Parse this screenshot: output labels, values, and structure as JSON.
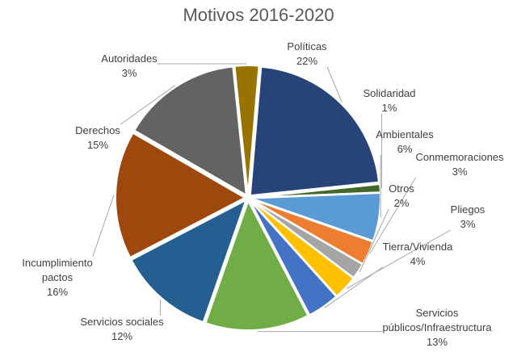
{
  "chart_data": {
    "type": "pie",
    "title": "Motivos 2016-2020",
    "unit": "%",
    "slices": [
      {
        "lines": [
          "Políticas"
        ],
        "value": 22,
        "text": "22%",
        "color": "#264478"
      },
      {
        "lines": [
          "Solidaridad"
        ],
        "value": 1,
        "text": "1%",
        "color": "#43682B"
      },
      {
        "lines": [
          "Ambientales"
        ],
        "value": 6,
        "text": "6%",
        "color": "#5B9BD5"
      },
      {
        "lines": [
          "Conmemoraciones"
        ],
        "value": 3,
        "text": "3%",
        "color": "#ED7D31"
      },
      {
        "lines": [
          "Otros"
        ],
        "value": 2,
        "text": "2%",
        "color": "#A5A5A5"
      },
      {
        "lines": [
          "Pliegos"
        ],
        "value": 3,
        "text": "3%",
        "color": "#FFC000"
      },
      {
        "lines": [
          "Tierra/Vivienda"
        ],
        "value": 4,
        "text": "4%",
        "color": "#4472C4"
      },
      {
        "lines": [
          "Servicios",
          "públicos/Infraestructura"
        ],
        "value": 13,
        "text": "13%",
        "color": "#70AD47"
      },
      {
        "lines": [
          "Servicios sociales"
        ],
        "value": 12,
        "text": "12%",
        "color": "#255E91"
      },
      {
        "lines": [
          "Incumplimiento",
          "pactos"
        ],
        "value": 16,
        "text": "16%",
        "color": "#9E480E"
      },
      {
        "lines": [
          "Derechos"
        ],
        "value": 15,
        "text": "15%",
        "color": "#636363"
      },
      {
        "lines": [
          "Autoridades"
        ],
        "value": 3,
        "text": "3%",
        "color": "#997300"
      }
    ]
  }
}
